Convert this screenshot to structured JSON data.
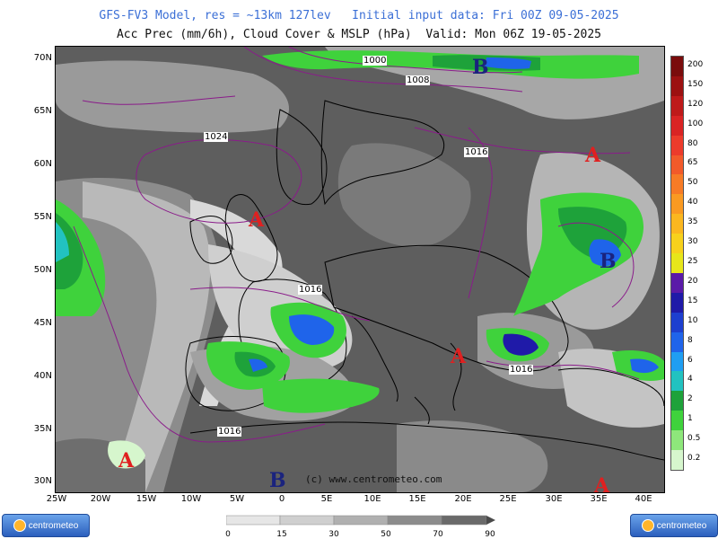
{
  "header": {
    "line1": "GFS-FV3 Model, res = ~13km 127lev   Initial input data: Fri 00Z 09-05-2025",
    "line2": "Acc Prec (mm/6h), Cloud Cover & MSLP (hPa)  Valid: Mon 06Z 19-05-2025"
  },
  "latitude_labels": [
    "70N",
    "65N",
    "60N",
    "55N",
    "50N",
    "45N",
    "40N",
    "35N",
    "30N"
  ],
  "longitude_labels": [
    "25W",
    "20W",
    "15W",
    "10W",
    "5W",
    "0",
    "5E",
    "10E",
    "15E",
    "20E",
    "25E",
    "30E",
    "35E",
    "40E"
  ],
  "isobars": [
    "1000",
    "1008",
    "1024",
    "1016",
    "1016",
    "1016",
    "1016"
  ],
  "pressure_centers": [
    "B",
    "A",
    "A",
    "B",
    "A",
    "A",
    "B",
    "A"
  ],
  "pressure_colors": {
    "high": "#e02020",
    "low": "#1a237e"
  },
  "watermark": "(c) www.centrometeo.com",
  "precip_scale": {
    "labels": [
      "200",
      "150",
      "120",
      "100",
      "80",
      "65",
      "50",
      "40",
      "35",
      "30",
      "25",
      "20",
      "15",
      "10",
      "8",
      "6",
      "4",
      "2",
      "1",
      "0.5",
      "0.2"
    ],
    "colors": [
      "#7a0c0c",
      "#9c1111",
      "#be1a1a",
      "#d92424",
      "#ec3b2b",
      "#f25a2a",
      "#f77b26",
      "#fa9a22",
      "#fbb71f",
      "#f7d11c",
      "#e7e61a",
      "#5a1aa8",
      "#1f1aa8",
      "#1d3fcf",
      "#1f64ea",
      "#1f9ef2",
      "#22c2c0",
      "#1ea23a",
      "#3fd23c",
      "#8ee77b",
      "#d6f6cd"
    ]
  },
  "cloud_scale": {
    "labels": [
      "0",
      "15",
      "30",
      "50",
      "70",
      "90"
    ]
  },
  "logos": {
    "left": "centrometeo",
    "right": "centrometeo"
  }
}
